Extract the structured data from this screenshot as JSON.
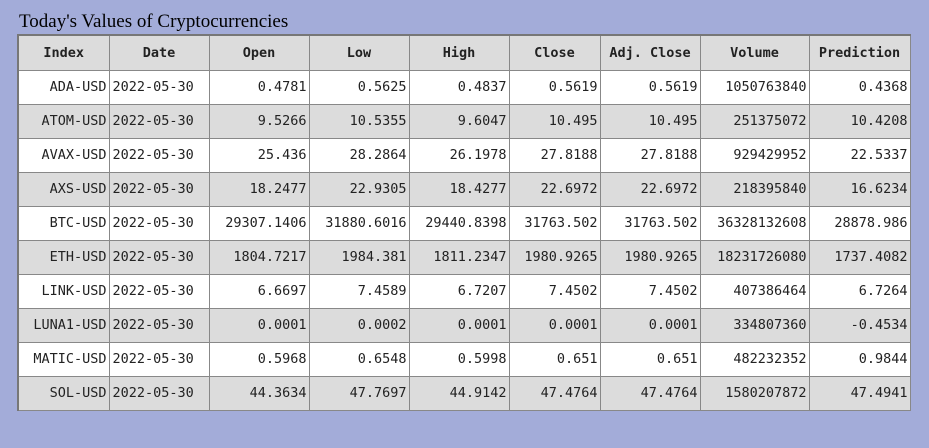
{
  "title": "Today's Values of Cryptocurrencies",
  "columns": [
    "Index",
    "Date",
    "Open",
    "Low",
    "High",
    "Close",
    "Adj. Close",
    "Volume",
    "Prediction"
  ],
  "rows": [
    [
      "ADA-USD",
      "2022-05-30",
      "0.4781",
      "0.5625",
      "0.4837",
      "0.5619",
      "0.5619",
      "1050763840",
      "0.4368"
    ],
    [
      "ATOM-USD",
      "2022-05-30",
      "9.5266",
      "10.5355",
      "9.6047",
      "10.495",
      "10.495",
      "251375072",
      "10.4208"
    ],
    [
      "AVAX-USD",
      "2022-05-30",
      "25.436",
      "28.2864",
      "26.1978",
      "27.8188",
      "27.8188",
      "929429952",
      "22.5337"
    ],
    [
      "AXS-USD",
      "2022-05-30",
      "18.2477",
      "22.9305",
      "18.4277",
      "22.6972",
      "22.6972",
      "218395840",
      "16.6234"
    ],
    [
      "BTC-USD",
      "2022-05-30",
      "29307.1406",
      "31880.6016",
      "29440.8398",
      "31763.502",
      "31763.502",
      "36328132608",
      "28878.986"
    ],
    [
      "ETH-USD",
      "2022-05-30",
      "1804.7217",
      "1984.381",
      "1811.2347",
      "1980.9265",
      "1980.9265",
      "18231726080",
      "1737.4082"
    ],
    [
      "LINK-USD",
      "2022-05-30",
      "6.6697",
      "7.4589",
      "6.7207",
      "7.4502",
      "7.4502",
      "407386464",
      "6.7264"
    ],
    [
      "LUNA1-USD",
      "2022-05-30",
      "0.0001",
      "0.0002",
      "0.0001",
      "0.0001",
      "0.0001",
      "334807360",
      "-0.4534"
    ],
    [
      "MATIC-USD",
      "2022-05-30",
      "0.5968",
      "0.6548",
      "0.5998",
      "0.651",
      "0.651",
      "482232352",
      "0.9844"
    ],
    [
      "SOL-USD",
      "2022-05-30",
      "44.3634",
      "47.7697",
      "44.9142",
      "47.4764",
      "47.4764",
      "1580207872",
      "47.4941"
    ]
  ],
  "colors": {
    "page_background": "#a3acd9",
    "header_background": "#dcdcdc",
    "row_odd": "#ffffff",
    "row_even": "#dcdcdc"
  }
}
